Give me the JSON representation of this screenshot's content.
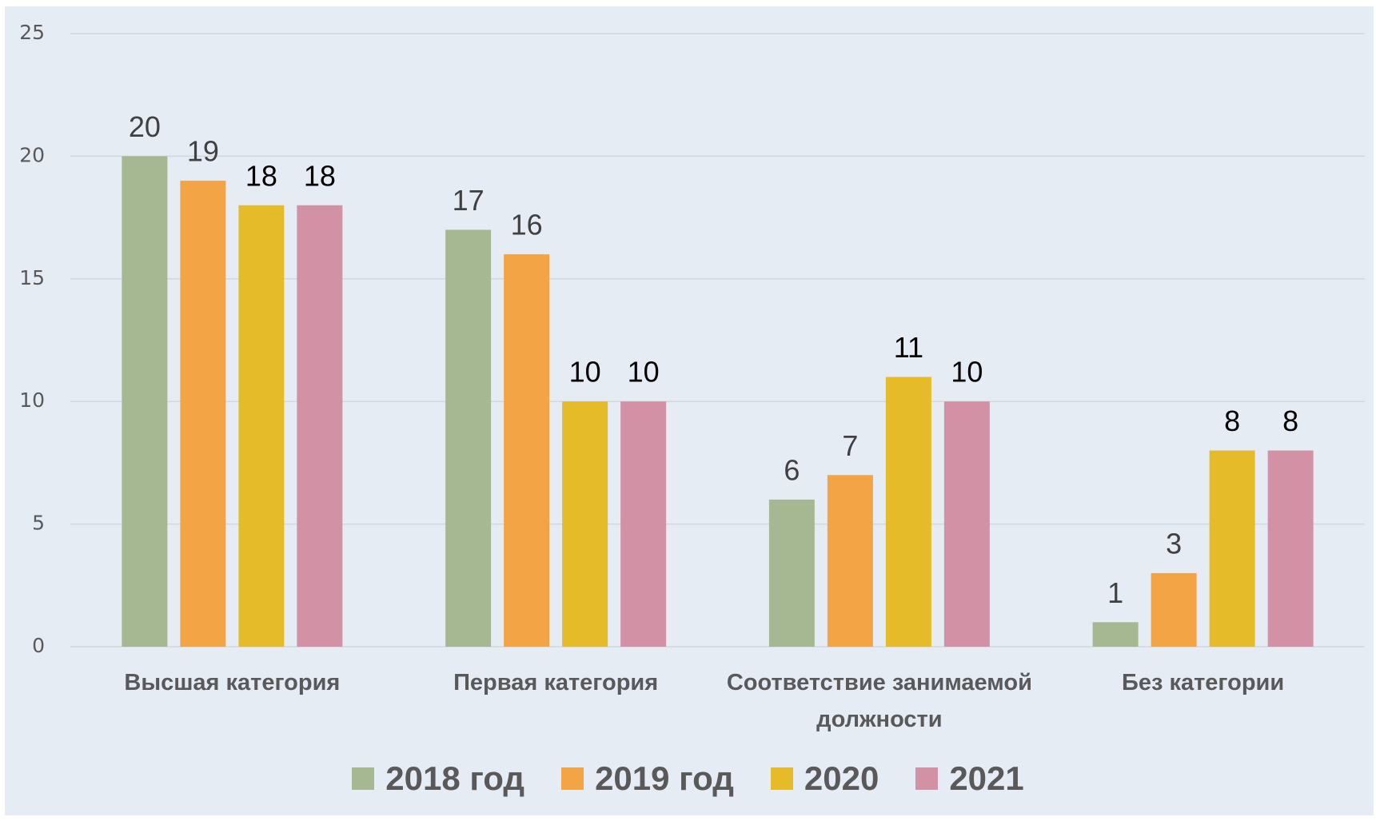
{
  "chart_data": {
    "type": "bar",
    "categories": [
      "Высшая категория",
      "Первая категория",
      "Соответствие занимаемой должности",
      "Без категории"
    ],
    "series": [
      {
        "name": "2018 год",
        "color": "#a6b892",
        "label_color": "#404040",
        "values": [
          20,
          17,
          6,
          1
        ]
      },
      {
        "name": "2019 год",
        "color": "#f3a444",
        "label_color": "#404040",
        "values": [
          19,
          16,
          7,
          3
        ]
      },
      {
        "name": "2020",
        "color": "#e5bb29",
        "label_color": "#000000",
        "values": [
          18,
          10,
          11,
          8
        ]
      },
      {
        "name": "2021",
        "color": "#d391a5",
        "label_color": "#000000",
        "values": [
          18,
          10,
          10,
          8
        ]
      }
    ],
    "ylim": [
      0,
      25
    ],
    "yticks": [
      0,
      5,
      10,
      15,
      20,
      25
    ],
    "grid": true,
    "legend": "bottom"
  }
}
